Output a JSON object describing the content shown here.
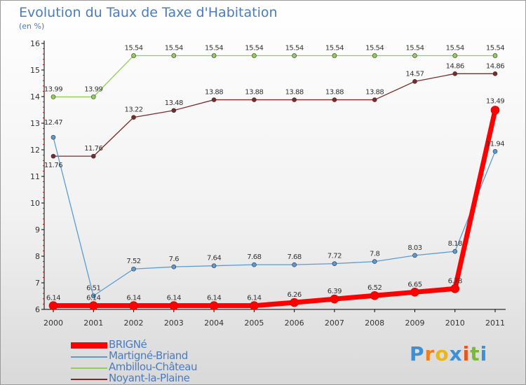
{
  "chart_data": {
    "type": "line",
    "title": "Evolution du Taux de Taxe d'Habitation",
    "subtitle": "(en %)",
    "x": [
      "2000",
      "2001",
      "2002",
      "2003",
      "2004",
      "2005",
      "2006",
      "2007",
      "2008",
      "2009",
      "2010",
      "2011"
    ],
    "ylim": [
      6,
      16
    ],
    "yticks": [
      6,
      7,
      8,
      9,
      10,
      11,
      12,
      13,
      14,
      15,
      16
    ],
    "grid": false,
    "legend_position": "bottom-left",
    "series": [
      {
        "name": "BRIGNé",
        "color": "#ff0000",
        "values": [
          6.14,
          6.14,
          6.14,
          6.14,
          6.14,
          6.14,
          6.26,
          6.39,
          6.52,
          6.65,
          6.78,
          13.49
        ],
        "labels": [
          "6.14",
          "6.14",
          "6.14",
          "6.14",
          "6.14",
          "6.14",
          "6.26",
          "6.39",
          "6.52",
          "6.65",
          "6.78",
          "13.49"
        ]
      },
      {
        "name": "Martigné-Briand",
        "color": "#5b9bd5",
        "values": [
          12.47,
          6.51,
          7.52,
          7.6,
          7.64,
          7.68,
          7.68,
          7.72,
          7.8,
          8.03,
          8.18,
          11.94
        ],
        "labels": [
          "12.47",
          "6.51",
          "7.52",
          "7.6",
          "7.64",
          "7.68",
          "7.68",
          "7.72",
          "7.8",
          "8.03",
          "8.18",
          "11.94"
        ]
      },
      {
        "name": "Ambillou-Château",
        "color": "#90d050",
        "values": [
          13.99,
          13.99,
          15.54,
          15.54,
          15.54,
          15.54,
          15.54,
          15.54,
          15.54,
          15.54,
          15.54,
          15.54
        ],
        "labels": [
          "13.99",
          "13.99",
          "15.54",
          "15.54",
          "15.54",
          "15.54",
          "15.54",
          "15.54",
          "15.54",
          "15.54",
          "15.54",
          "15.54"
        ]
      },
      {
        "name": "Noyant-la-Plaine",
        "color": "#7a2b2b",
        "values": [
          11.76,
          11.76,
          13.22,
          13.48,
          13.88,
          13.88,
          13.88,
          13.88,
          13.88,
          14.57,
          14.86,
          14.86
        ],
        "labels": [
          "11.76",
          "11.76",
          "13.22",
          "13.48",
          "13.88",
          "13.88",
          "13.88",
          "13.88",
          "13.88",
          "14.57",
          "14.86",
          "14.86"
        ]
      }
    ]
  },
  "logo": {
    "letters": [
      "P",
      "r",
      "o",
      "x",
      "i",
      "t",
      "i"
    ],
    "colors": [
      "#3d8fd6",
      "#f07f1a",
      "#e8b71a",
      "#3d8fd6",
      "#e8571a",
      "#7ab83a",
      "#3d8fd6"
    ]
  }
}
